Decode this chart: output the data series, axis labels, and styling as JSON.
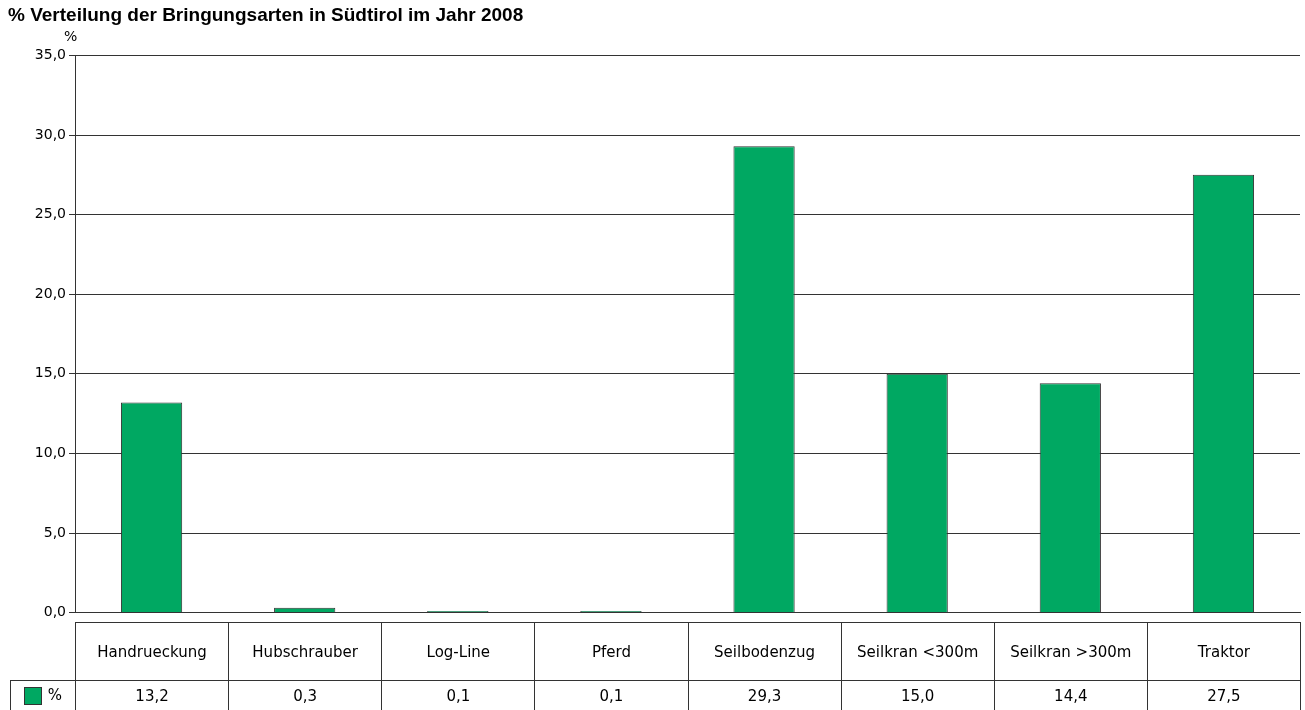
{
  "chart_data": {
    "type": "bar",
    "title": "% Verteilung der Bringungsarten in Südtirol im Jahr 2008",
    "ylabel": "%",
    "categories": [
      "Handrueckung",
      "Hubschrauber",
      "Log-Line",
      "Pferd",
      "Seilbodenzug",
      "Seilkran <300m",
      "Seilkran >300m",
      "Traktor"
    ],
    "series": [
      {
        "name": "%",
        "color": "#00a862",
        "values": [
          13.2,
          0.3,
          0.1,
          0.1,
          29.3,
          15.0,
          14.4,
          27.5
        ],
        "value_labels": [
          "13,2",
          "0,3",
          "0,1",
          "0,1",
          "29,3",
          "15,0",
          "14,4",
          "27,5"
        ]
      }
    ],
    "ylim": [
      0,
      35
    ],
    "yticks": [
      {
        "value": 0,
        "label": "0,0"
      },
      {
        "value": 5,
        "label": "5,0"
      },
      {
        "value": 10,
        "label": "10,0"
      },
      {
        "value": 15,
        "label": "15,0"
      },
      {
        "value": 20,
        "label": "20,0"
      },
      {
        "value": 25,
        "label": "25,0"
      },
      {
        "value": 30,
        "label": "30,0"
      },
      {
        "value": 35,
        "label": "35,0"
      }
    ],
    "grid": "y"
  }
}
